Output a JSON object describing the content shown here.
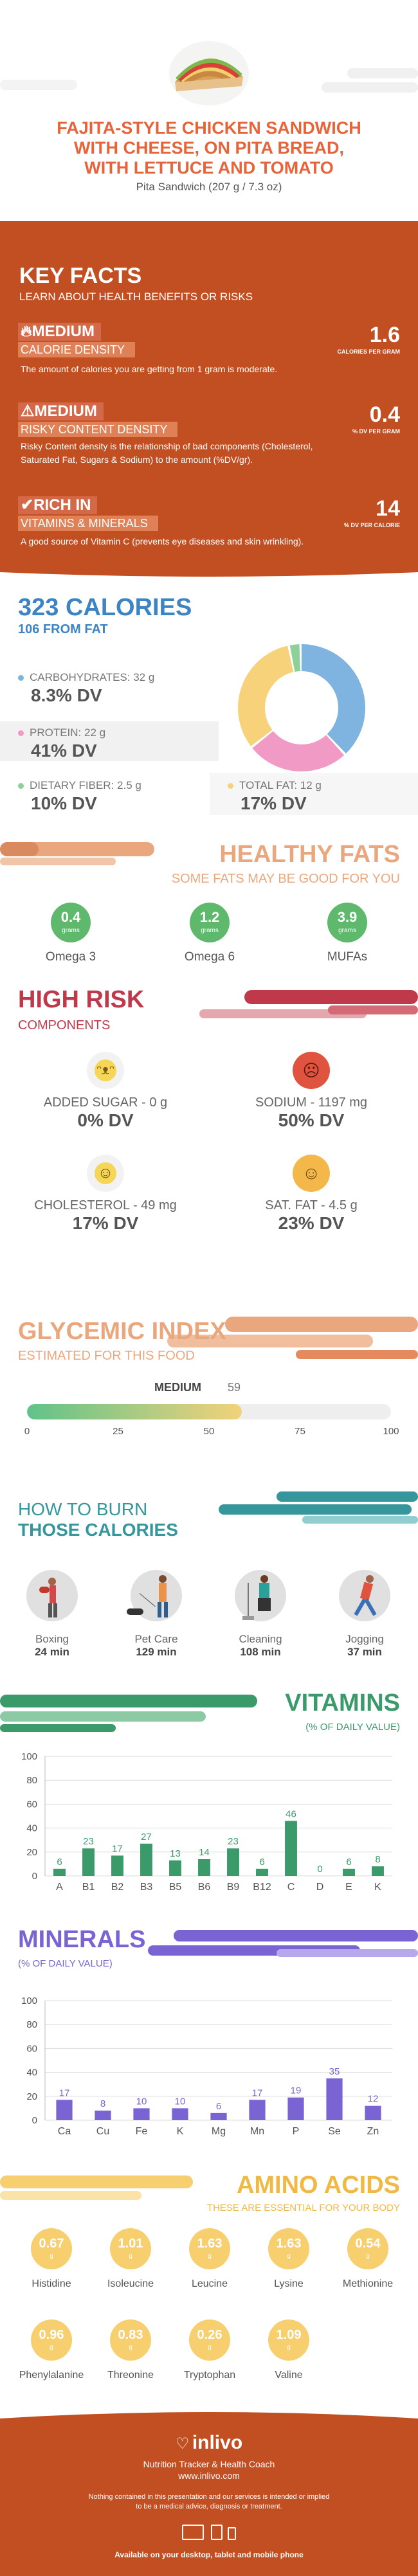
{
  "colors": {
    "orange": "#e7643a",
    "rust": "#c24f22",
    "blue": "#3c84c4",
    "green": "#5fb96d",
    "red": "#c0394b",
    "peach": "#eaa77e",
    "teal": "#35979c",
    "purple": "#7a64d4",
    "gold": "#f0b945"
  },
  "header": {
    "title_line1": "FAJITA-STYLE CHICKEN SANDWICH",
    "title_line2": "WITH CHEESE, ON PITA BREAD,",
    "title_line3": "WITH LETTUCE AND TOMATO",
    "subtitle": "Pita Sandwich (207 g / 7.3 oz)"
  },
  "key_facts": {
    "title": "KEY FACTS",
    "subtitle": "LEARN ABOUT HEALTH BENEFITS OR RISKS",
    "items": [
      {
        "icon": "flame-icon",
        "level": "MEDIUM",
        "label": "CALORIE DENSITY",
        "value": "1.6",
        "unit": "CALORIES PER GRAM",
        "desc": "The amount of calories you are getting from 1 gram is moderate."
      },
      {
        "icon": "warning-icon",
        "level": "MEDIUM",
        "label": "RISKY CONTENT DENSITY",
        "value": "0.4",
        "unit": "% DV PER GRAM",
        "desc": "Risky Content density is the relationship of bad components (Cholesterol, Saturated Fat, Sugars & Sodium) to the amount (%DV/gr)."
      },
      {
        "icon": "thumbs-up-icon",
        "level": "RICH  IN",
        "label": "VITAMINS & MINERALS",
        "value": "14",
        "unit": "% DV PER CALORIE",
        "desc": "A good source of Vitamin C (prevents eye diseases and skin wrinkling)."
      }
    ]
  },
  "calories": {
    "title": "323 CALORIES",
    "from_fat": "106 FROM FAT",
    "carbs_label": "CARBOHYDRATES: 32 g",
    "carbs_dv": "8.3% DV",
    "protein_label": "PROTEIN: 22 g",
    "protein_dv": "41% DV",
    "fiber_label": "DIETARY FIBER: 2.5 g",
    "fiber_dv": "10% DV",
    "fat_label": "TOTAL FAT: 12 g",
    "fat_dv": "17% DV",
    "donut": [
      {
        "name": "carbohydrates",
        "value": 128,
        "color": "#7fb3e0"
      },
      {
        "name": "protein",
        "value": 88,
        "color": "#f19ac6"
      },
      {
        "name": "total fat",
        "value": 108,
        "color": "#f7d27a"
      },
      {
        "name": "fiber",
        "value": 10,
        "color": "#8fcf9a"
      }
    ]
  },
  "healthy_fats": {
    "title": "HEALTHY FATS",
    "subtitle": "SOME FATS MAY BE GOOD FOR YOU",
    "items": [
      {
        "value": "0.4",
        "unit": "grams",
        "name": "Omega 3"
      },
      {
        "value": "1.2",
        "unit": "grams",
        "name": "Omega 6"
      },
      {
        "value": "3.9",
        "unit": "grams",
        "name": "MUFAs"
      }
    ]
  },
  "high_risk": {
    "title": "HIGH RISK",
    "subtitle": "COMPONENTS",
    "items": [
      {
        "icon": "grin-face-icon",
        "label": "ADDED SUGAR - 0 g",
        "dv": "0% DV",
        "color": "#f5d657"
      },
      {
        "icon": "sad-face-icon",
        "label": "SODIUM - 1197 mg",
        "dv": "50% DV",
        "color": "#e0533e"
      },
      {
        "icon": "smile-face-icon",
        "label": "CHOLESTEROL - 49 mg",
        "dv": "17% DV",
        "color": "#f5d657"
      },
      {
        "icon": "smile-face-icon",
        "label": "SAT. FAT - 4.5 g",
        "dv": "23% DV",
        "color": "#f4b84a"
      }
    ]
  },
  "glycemic": {
    "title": "GLYCEMIC INDEX",
    "subtitle": "ESTIMATED FOR THIS FOOD",
    "level": "MEDIUM",
    "value": 59,
    "value_text": "59",
    "ticks": [
      "0",
      "25",
      "50",
      "75",
      "100"
    ]
  },
  "burn": {
    "title_line1": "HOW TO BURN",
    "title_line2": "THOSE CALORIES",
    "items": [
      {
        "icon": "boxing-icon",
        "name": "Boxing",
        "time": "24 min"
      },
      {
        "icon": "pet-care-icon",
        "name": "Pet Care",
        "time": "129 min"
      },
      {
        "icon": "cleaning-icon",
        "name": "Cleaning",
        "time": "108 min"
      },
      {
        "icon": "jogging-icon",
        "name": "Jogging",
        "time": "37 min"
      }
    ]
  },
  "vitamins": {
    "title": "VITAMINS",
    "subtitle": "(% OF DAILY VALUE)",
    "chart_data": {
      "type": "bar",
      "categories": [
        "A",
        "B1",
        "B2",
        "B3",
        "B5",
        "B6",
        "B9",
        "B12",
        "C",
        "D",
        "E",
        "K"
      ],
      "values": [
        6,
        23,
        17,
        27,
        13,
        14,
        23,
        6,
        46,
        0,
        6,
        8
      ],
      "ylim": [
        0,
        100
      ],
      "yticks": [
        "100",
        "80",
        "60",
        "40",
        "20",
        "0"
      ],
      "color": "#3a9a69"
    }
  },
  "minerals": {
    "title": "MINERALS",
    "subtitle": "(% OF DAILY VALUE)",
    "chart_data": {
      "type": "bar",
      "categories": [
        "Ca",
        "Cu",
        "Fe",
        "K",
        "Mg",
        "Mn",
        "P",
        "Se",
        "Zn"
      ],
      "values": [
        17,
        8,
        10,
        10,
        6,
        17,
        19,
        35,
        12
      ],
      "ylim": [
        0,
        100
      ],
      "yticks": [
        "100",
        "80",
        "60",
        "40",
        "20",
        "0"
      ],
      "color": "#7a64d4"
    }
  },
  "amino": {
    "title": "AMINO ACIDS",
    "subtitle": "THESE ARE ESSENTIAL FOR YOUR BODY",
    "unit": "g",
    "items": [
      {
        "value": "0.67",
        "name": "Histidine"
      },
      {
        "value": "1.01",
        "name": "Isoleucine"
      },
      {
        "value": "1.63",
        "name": "Leucine"
      },
      {
        "value": "1.63",
        "name": "Lysine"
      },
      {
        "value": "0.54",
        "name": "Methionine"
      },
      {
        "value": "0.96",
        "name": "Phenylalanine"
      },
      {
        "value": "0.83",
        "name": "Threonine"
      },
      {
        "value": "0.26",
        "name": "Tryptophan"
      },
      {
        "value": "1.09",
        "name": "Valine"
      }
    ]
  },
  "footer": {
    "brand": "inlivo",
    "tagline": "Nutrition Tracker & Health Coach",
    "url": "www.inlivo.com",
    "disclaimer_line1": "Nothing contained in this presentation and our services is intended or implied",
    "disclaimer_line2": "to be a medical advice, diagnosis or treatment.",
    "available": "Available on your desktop, tablet and mobile phone"
  }
}
